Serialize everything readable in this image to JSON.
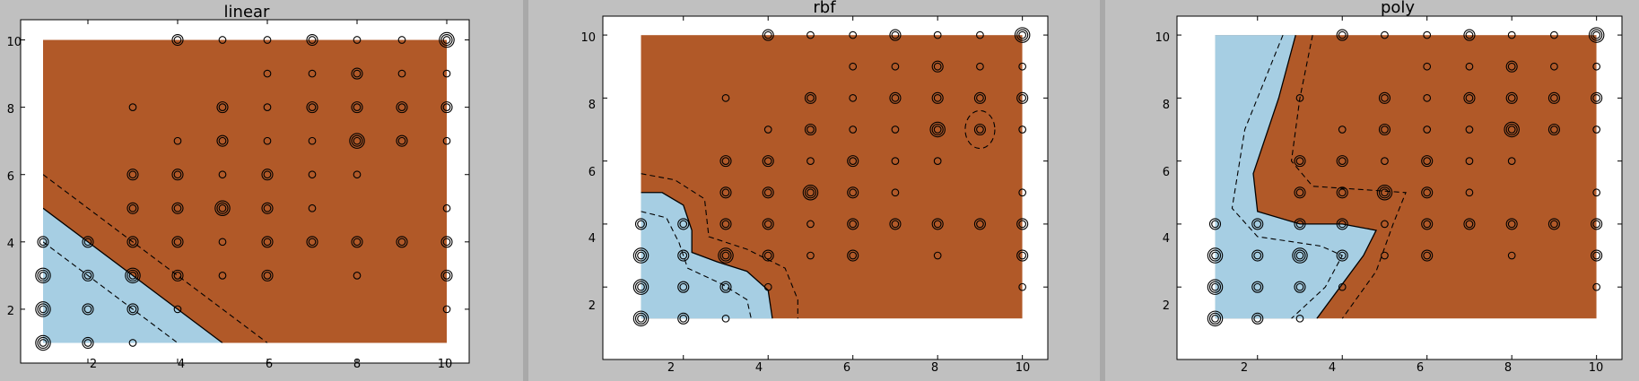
{
  "window": {
    "background": "#c0c0c0"
  },
  "colors": {
    "class_neg": "#a6cee3",
    "class_pos": "#b15928",
    "plot_bg": "#ffffff",
    "marker": "#000000"
  },
  "chart_data": [
    {
      "type": "scatter",
      "title": "linear",
      "xlabel": "",
      "ylabel": "",
      "xlim": [
        0.5,
        10.5
      ],
      "ylim": [
        0.4,
        10.6
      ],
      "xticks": [
        2,
        4,
        6,
        8,
        10
      ],
      "yticks": [
        2,
        4,
        6,
        8,
        10
      ],
      "xtick_labels": [
        "2",
        "4",
        "6",
        "8",
        "10"
      ],
      "ytick_labels": [
        "2",
        "4",
        "6",
        "8",
        "10"
      ],
      "boundary": [
        [
          1,
          5
        ],
        [
          5,
          1
        ]
      ],
      "margin_lines": [
        [
          [
            1,
            6
          ],
          [
            6,
            1
          ]
        ],
        [
          [
            1,
            4
          ],
          [
            4,
            1
          ]
        ]
      ],
      "points": [
        [
          4,
          10,
          2
        ],
        [
          5,
          10,
          1
        ],
        [
          6,
          10,
          1
        ],
        [
          7,
          10,
          2
        ],
        [
          8,
          10,
          1
        ],
        [
          9,
          10,
          1
        ],
        [
          10,
          10,
          3
        ],
        [
          6,
          9,
          1
        ],
        [
          7,
          9,
          1
        ],
        [
          8,
          9,
          2
        ],
        [
          9,
          9,
          1
        ],
        [
          10,
          9,
          1
        ],
        [
          3,
          8,
          1
        ],
        [
          5,
          8,
          2
        ],
        [
          6,
          8,
          1
        ],
        [
          7,
          8,
          2
        ],
        [
          8,
          8,
          2
        ],
        [
          9,
          8,
          2
        ],
        [
          10,
          8,
          2
        ],
        [
          4,
          7,
          1
        ],
        [
          5,
          7,
          2
        ],
        [
          6,
          7,
          1
        ],
        [
          7,
          7,
          1
        ],
        [
          8,
          7,
          3
        ],
        [
          9,
          7,
          2
        ],
        [
          10,
          7,
          1
        ],
        [
          3,
          6,
          2
        ],
        [
          4,
          6,
          2
        ],
        [
          5,
          6,
          1
        ],
        [
          6,
          6,
          2
        ],
        [
          7,
          6,
          1
        ],
        [
          8,
          6,
          1
        ],
        [
          3,
          5,
          2
        ],
        [
          4,
          5,
          2
        ],
        [
          5,
          5,
          3
        ],
        [
          6,
          5,
          2
        ],
        [
          7,
          5,
          1
        ],
        [
          10,
          5,
          1
        ],
        [
          1,
          4,
          2
        ],
        [
          2,
          4,
          2
        ],
        [
          3,
          4,
          2
        ],
        [
          4,
          4,
          2
        ],
        [
          5,
          4,
          1
        ],
        [
          6,
          4,
          2
        ],
        [
          7,
          4,
          2
        ],
        [
          8,
          4,
          2
        ],
        [
          9,
          4,
          2
        ],
        [
          10,
          4,
          2
        ],
        [
          1,
          3,
          3
        ],
        [
          2,
          3,
          2
        ],
        [
          3,
          3,
          3
        ],
        [
          4,
          3,
          2
        ],
        [
          5,
          3,
          1
        ],
        [
          6,
          3,
          2
        ],
        [
          8,
          3,
          1
        ],
        [
          10,
          3,
          2
        ],
        [
          1,
          2,
          3
        ],
        [
          2,
          2,
          2
        ],
        [
          3,
          2,
          2
        ],
        [
          4,
          2,
          1
        ],
        [
          10,
          2,
          1
        ],
        [
          1,
          1,
          3
        ],
        [
          2,
          1,
          2
        ],
        [
          3,
          1,
          1
        ]
      ]
    },
    {
      "type": "scatter",
      "title": "rbf",
      "xlabel": "",
      "ylabel": "",
      "xlim": [
        0.1,
        10.6
      ],
      "ylim": [
        -0.3,
        10.6
      ],
      "xticks": [
        2,
        4,
        6,
        8,
        10
      ],
      "yticks": [
        2,
        4,
        6,
        8,
        10
      ],
      "xtick_labels": [
        "2",
        "4",
        "6",
        "8",
        "10"
      ],
      "ytick_labels": [
        "2",
        "4",
        "6",
        "8",
        "10"
      ],
      "boundary": [
        [
          1,
          5
        ],
        [
          1.5,
          5
        ],
        [
          2,
          4.6
        ],
        [
          2.2,
          3.8
        ],
        [
          2.2,
          3.1
        ],
        [
          2.8,
          2.8
        ],
        [
          3.5,
          2.5
        ],
        [
          4,
          1.9
        ],
        [
          4.1,
          1
        ]
      ],
      "margin_lines": [
        [
          [
            1,
            5.6
          ],
          [
            1.8,
            5.4
          ],
          [
            2.5,
            4.8
          ],
          [
            2.6,
            3.6
          ],
          [
            3.5,
            3.2
          ],
          [
            4.4,
            2.6
          ],
          [
            4.7,
            1.6
          ],
          [
            4.7,
            1
          ]
        ],
        [
          [
            1,
            4.4
          ],
          [
            1.6,
            4.2
          ],
          [
            1.9,
            3.4
          ],
          [
            2.1,
            2.6
          ],
          [
            2.9,
            2.1
          ],
          [
            3.5,
            1.6
          ],
          [
            3.6,
            1
          ]
        ]
      ],
      "islands": [
        {
          "center": [
            9,
            7
          ],
          "radius": [
            0.35,
            0.6
          ]
        }
      ],
      "points": [
        [
          4,
          10,
          2
        ],
        [
          5,
          10,
          1
        ],
        [
          6,
          10,
          1
        ],
        [
          7,
          10,
          2
        ],
        [
          8,
          10,
          1
        ],
        [
          9,
          10,
          1
        ],
        [
          10,
          10,
          3
        ],
        [
          6,
          9,
          1
        ],
        [
          7,
          9,
          1
        ],
        [
          8,
          9,
          2
        ],
        [
          9,
          9,
          1
        ],
        [
          10,
          9,
          1
        ],
        [
          3,
          8,
          1
        ],
        [
          5,
          8,
          2
        ],
        [
          6,
          8,
          1
        ],
        [
          7,
          8,
          2
        ],
        [
          8,
          8,
          2
        ],
        [
          9,
          8,
          2
        ],
        [
          10,
          8,
          2
        ],
        [
          4,
          7,
          1
        ],
        [
          5,
          7,
          2
        ],
        [
          6,
          7,
          1
        ],
        [
          7,
          7,
          1
        ],
        [
          8,
          7,
          3
        ],
        [
          9,
          7,
          2
        ],
        [
          10,
          7,
          1
        ],
        [
          3,
          6,
          2
        ],
        [
          4,
          6,
          2
        ],
        [
          5,
          6,
          1
        ],
        [
          6,
          6,
          2
        ],
        [
          7,
          6,
          1
        ],
        [
          8,
          6,
          1
        ],
        [
          3,
          5,
          2
        ],
        [
          4,
          5,
          2
        ],
        [
          5,
          5,
          3
        ],
        [
          6,
          5,
          2
        ],
        [
          7,
          5,
          1
        ],
        [
          10,
          5,
          1
        ],
        [
          1,
          4,
          2
        ],
        [
          2,
          4,
          2
        ],
        [
          3,
          4,
          2
        ],
        [
          4,
          4,
          2
        ],
        [
          5,
          4,
          1
        ],
        [
          6,
          4,
          2
        ],
        [
          7,
          4,
          2
        ],
        [
          8,
          4,
          2
        ],
        [
          9,
          4,
          2
        ],
        [
          10,
          4,
          2
        ],
        [
          1,
          3,
          3
        ],
        [
          2,
          3,
          2
        ],
        [
          3,
          3,
          3
        ],
        [
          4,
          3,
          2
        ],
        [
          5,
          3,
          1
        ],
        [
          6,
          3,
          2
        ],
        [
          8,
          3,
          1
        ],
        [
          10,
          3,
          2
        ],
        [
          1,
          2,
          3
        ],
        [
          2,
          2,
          2
        ],
        [
          3,
          2,
          2
        ],
        [
          4,
          2,
          1
        ],
        [
          10,
          2,
          1
        ],
        [
          1,
          1,
          3
        ],
        [
          2,
          1,
          2
        ],
        [
          3,
          1,
          1
        ]
      ]
    },
    {
      "type": "scatter",
      "title": "poly",
      "xlabel": "",
      "ylabel": "",
      "xlim": [
        0.1,
        10.6
      ],
      "ylim": [
        -0.3,
        10.6
      ],
      "xticks": [
        2,
        4,
        6,
        8,
        10
      ],
      "yticks": [
        2,
        4,
        6,
        8,
        10
      ],
      "xtick_labels": [
        "2",
        "4",
        "6",
        "8",
        "10"
      ],
      "ytick_labels": [
        "2",
        "4",
        "6",
        "8",
        "10"
      ],
      "boundary": [
        [
          2.9,
          10
        ],
        [
          2.5,
          8
        ],
        [
          1.9,
          5.6
        ],
        [
          2,
          4.4
        ],
        [
          3,
          4
        ],
        [
          4,
          4
        ],
        [
          4.8,
          3.8
        ],
        [
          4.5,
          3
        ],
        [
          3.4,
          1
        ]
      ],
      "margin_lines": [
        [
          [
            2.6,
            10
          ],
          [
            1.7,
            7
          ],
          [
            1.4,
            4.5
          ],
          [
            2,
            3.6
          ],
          [
            3.5,
            3.3
          ],
          [
            4,
            3
          ],
          [
            3.6,
            2
          ],
          [
            2.8,
            1
          ]
        ],
        [
          [
            3.3,
            10
          ],
          [
            3,
            8
          ],
          [
            2.8,
            6
          ],
          [
            3.3,
            5.2
          ],
          [
            5.5,
            5
          ],
          [
            5.2,
            4
          ],
          [
            4.8,
            2.5
          ],
          [
            4,
            1
          ]
        ]
      ],
      "points": [
        [
          4,
          10,
          2
        ],
        [
          5,
          10,
          1
        ],
        [
          6,
          10,
          1
        ],
        [
          7,
          10,
          2
        ],
        [
          8,
          10,
          1
        ],
        [
          9,
          10,
          1
        ],
        [
          10,
          10,
          3
        ],
        [
          6,
          9,
          1
        ],
        [
          7,
          9,
          1
        ],
        [
          8,
          9,
          2
        ],
        [
          9,
          9,
          1
        ],
        [
          10,
          9,
          1
        ],
        [
          3,
          8,
          1
        ],
        [
          5,
          8,
          2
        ],
        [
          6,
          8,
          1
        ],
        [
          7,
          8,
          2
        ],
        [
          8,
          8,
          2
        ],
        [
          9,
          8,
          2
        ],
        [
          10,
          8,
          2
        ],
        [
          4,
          7,
          1
        ],
        [
          5,
          7,
          2
        ],
        [
          6,
          7,
          1
        ],
        [
          7,
          7,
          1
        ],
        [
          8,
          7,
          3
        ],
        [
          9,
          7,
          2
        ],
        [
          10,
          7,
          1
        ],
        [
          3,
          6,
          2
        ],
        [
          4,
          6,
          2
        ],
        [
          5,
          6,
          1
        ],
        [
          6,
          6,
          2
        ],
        [
          7,
          6,
          1
        ],
        [
          8,
          6,
          1
        ],
        [
          3,
          5,
          2
        ],
        [
          4,
          5,
          2
        ],
        [
          5,
          5,
          3
        ],
        [
          6,
          5,
          2
        ],
        [
          7,
          5,
          1
        ],
        [
          10,
          5,
          1
        ],
        [
          1,
          4,
          2
        ],
        [
          2,
          4,
          2
        ],
        [
          3,
          4,
          2
        ],
        [
          4,
          4,
          2
        ],
        [
          5,
          4,
          1
        ],
        [
          6,
          4,
          2
        ],
        [
          7,
          4,
          2
        ],
        [
          8,
          4,
          2
        ],
        [
          9,
          4,
          2
        ],
        [
          10,
          4,
          2
        ],
        [
          1,
          3,
          3
        ],
        [
          2,
          3,
          2
        ],
        [
          3,
          3,
          3
        ],
        [
          4,
          3,
          2
        ],
        [
          5,
          3,
          1
        ],
        [
          6,
          3,
          2
        ],
        [
          8,
          3,
          1
        ],
        [
          10,
          3,
          2
        ],
        [
          1,
          2,
          3
        ],
        [
          2,
          2,
          2
        ],
        [
          3,
          2,
          2
        ],
        [
          4,
          2,
          1
        ],
        [
          10,
          2,
          1
        ],
        [
          1,
          1,
          3
        ],
        [
          2,
          1,
          2
        ],
        [
          3,
          1,
          1
        ]
      ]
    }
  ]
}
